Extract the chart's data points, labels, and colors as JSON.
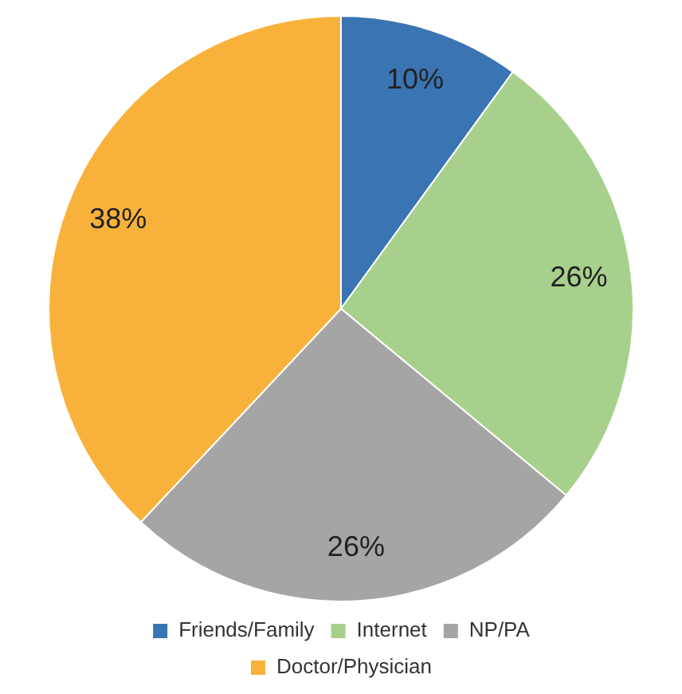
{
  "chart_data": {
    "type": "pie",
    "categories": [
      "Friends/Family",
      "Internet",
      "NP/PA",
      "Doctor/Physician"
    ],
    "values": [
      10,
      26,
      26,
      38
    ],
    "colors": [
      "#3a74b3",
      "#a8d08d",
      "#a5a5a5",
      "#f8b23b"
    ],
    "value_labels": [
      "10%",
      "26%",
      "26%",
      "38%"
    ],
    "legend": "bottom"
  }
}
